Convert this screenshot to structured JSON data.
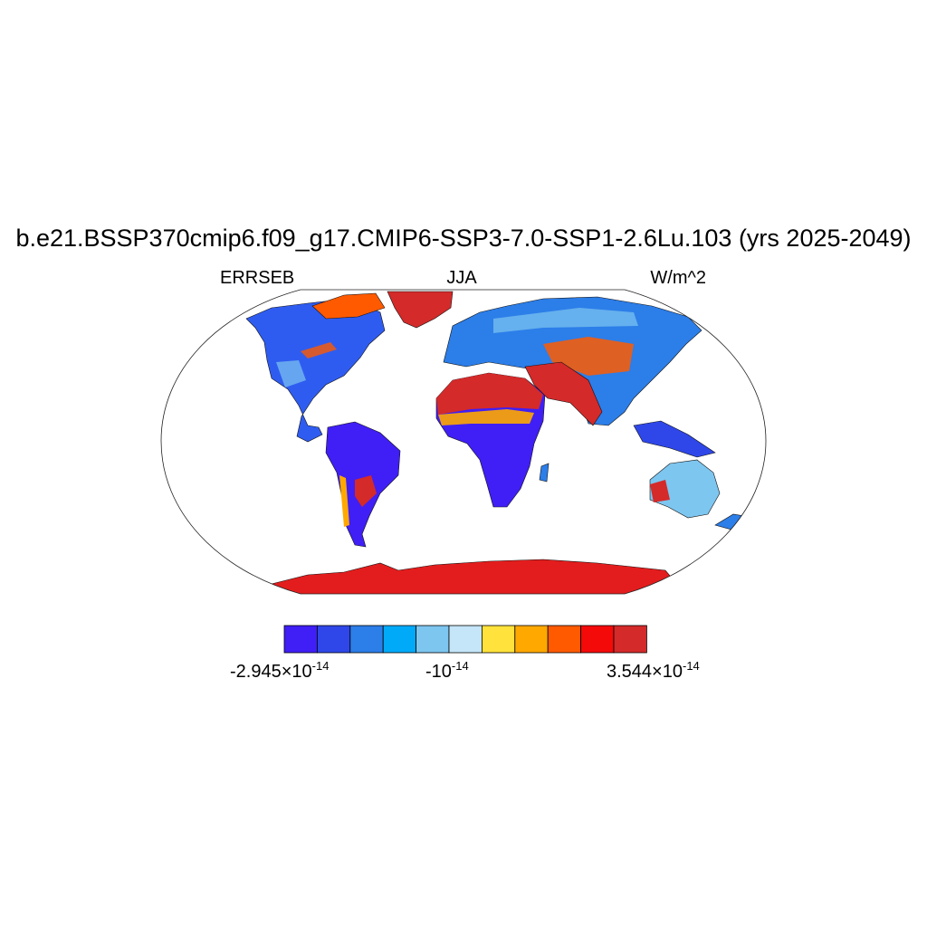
{
  "title": "b.e21.BSSP370cmip6.f09_g17.CMIP6-SSP3-7.0-SSP1-2.6Lu.103 (yrs 2025-2049)",
  "variable": "ERRSEB",
  "season": "JJA",
  "units": "W/m^2",
  "colorbar": {
    "colors": [
      "#3f1ff5",
      "#2f47e8",
      "#2c7ee9",
      "#00aaf9",
      "#7dc6f0",
      "#c5e5f8",
      "#ffe23b",
      "#ffa800",
      "#ff5a00",
      "#f50a0a",
      "#d42a2a"
    ],
    "labels": [
      {
        "mantissa": "-2.945×10",
        "exponent": "-14"
      },
      {
        "mantissa": "-10",
        "exponent": "-14"
      },
      {
        "mantissa": "3.544×10",
        "exponent": "-14"
      }
    ]
  }
}
